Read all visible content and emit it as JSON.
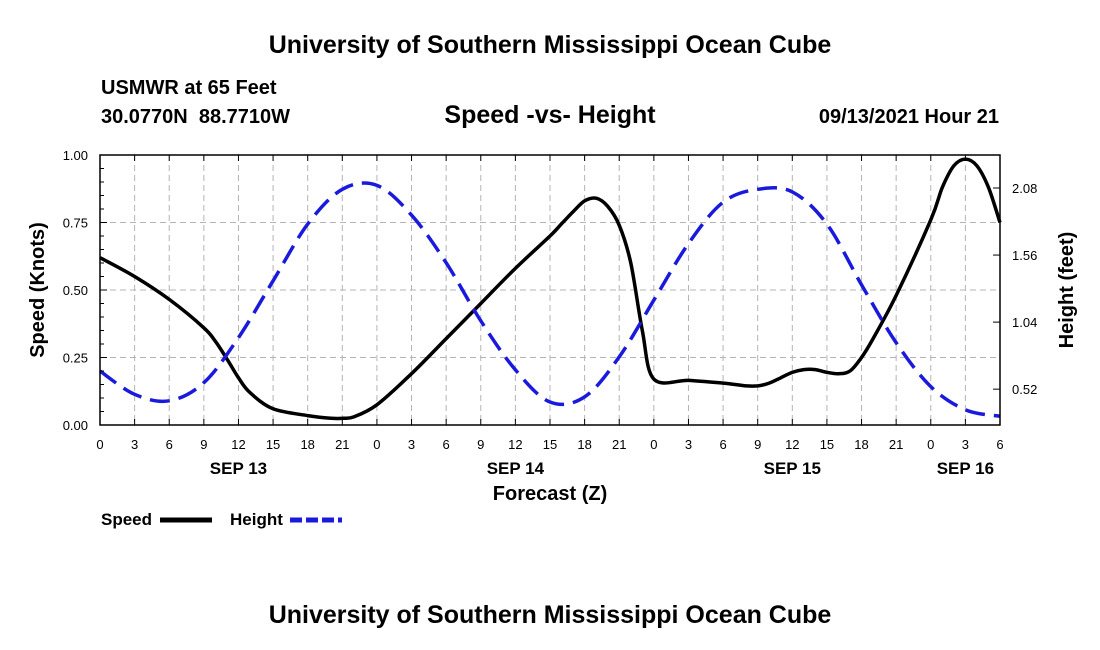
{
  "header": {
    "top_title": "University of Southern Mississippi Ocean Cube",
    "station": "USMWR at 65 Feet",
    "coords": "30.0770N  88.7710W",
    "datetime": "09/13/2021 Hour 21",
    "bottom_title": "University of Southern Mississippi Ocean Cube"
  },
  "colors": {
    "speed": "#000000",
    "height": "#1a1adc",
    "grid": "#b4b4b4"
  },
  "chart_data": {
    "type": "line",
    "title": "Speed -vs- Height",
    "xlabel": "Forecast (Z)",
    "ylabel": "Speed (Knots)",
    "y2label": "Height (feet)",
    "xlim": [
      0,
      78
    ],
    "ylim": [
      0,
      1.0
    ],
    "y2lim": [
      0.242,
      2.336
    ],
    "x_ticks": [
      0,
      3,
      6,
      9,
      12,
      15,
      18,
      21,
      24,
      27,
      30,
      33,
      36,
      39,
      42,
      45,
      48,
      51,
      54,
      57,
      60,
      63,
      66,
      69,
      72,
      75,
      78
    ],
    "x_tick_labels": [
      "0",
      "3",
      "6",
      "9",
      "12",
      "15",
      "18",
      "21",
      "0",
      "3",
      "6",
      "9",
      "12",
      "15",
      "18",
      "21",
      "0",
      "3",
      "6",
      "9",
      "12",
      "15",
      "18",
      "21",
      "0",
      "3",
      "6"
    ],
    "date_labels": [
      {
        "x": 12,
        "label": "SEP 13"
      },
      {
        "x": 36,
        "label": "SEP 14"
      },
      {
        "x": 60,
        "label": "SEP 15"
      },
      {
        "x": 75,
        "label": "SEP 16"
      }
    ],
    "y_ticks": [
      0.0,
      0.25,
      0.5,
      0.75,
      1.0
    ],
    "y_tick_labels": [
      "0.00",
      "0.25",
      "0.50",
      "0.75",
      "1.00"
    ],
    "y2_ticks": [
      0.52,
      1.04,
      1.56,
      2.08
    ],
    "y2_tick_labels": [
      "0.52",
      "1.04",
      "1.56",
      "2.08"
    ],
    "series": [
      {
        "name": "Speed",
        "axis": "left",
        "style": "solid",
        "x": [
          0,
          3,
          6,
          9,
          10,
          11,
          12,
          13,
          15,
          18,
          20,
          21,
          22,
          24,
          27,
          30,
          33,
          36,
          39,
          40,
          41,
          42,
          43,
          44,
          45,
          46,
          47,
          48,
          51,
          54,
          56,
          57,
          58,
          59,
          60,
          61,
          62,
          63,
          64,
          65,
          66,
          67,
          69,
          72,
          73,
          74,
          75,
          76,
          77,
          78
        ],
        "y": [
          0.62,
          0.55,
          0.465,
          0.36,
          0.31,
          0.245,
          0.175,
          0.12,
          0.06,
          0.035,
          0.025,
          0.025,
          0.03,
          0.075,
          0.19,
          0.32,
          0.45,
          0.58,
          0.7,
          0.745,
          0.79,
          0.83,
          0.84,
          0.81,
          0.74,
          0.6,
          0.35,
          0.17,
          0.165,
          0.155,
          0.145,
          0.145,
          0.155,
          0.175,
          0.195,
          0.205,
          0.205,
          0.195,
          0.19,
          0.2,
          0.25,
          0.32,
          0.48,
          0.76,
          0.88,
          0.96,
          0.985,
          0.96,
          0.88,
          0.75
        ]
      },
      {
        "name": "Height",
        "axis": "right",
        "style": "dashed",
        "x": [
          0,
          3,
          6,
          9,
          12,
          15,
          18,
          21,
          24,
          27,
          30,
          33,
          36,
          39,
          42,
          45,
          48,
          51,
          54,
          57,
          60,
          63,
          66,
          69,
          72,
          75,
          78
        ],
        "y": [
          0.66,
          0.48,
          0.43,
          0.57,
          0.92,
          1.36,
          1.8,
          2.07,
          2.1,
          1.87,
          1.5,
          1.05,
          0.67,
          0.42,
          0.46,
          0.77,
          1.21,
          1.65,
          1.97,
          2.07,
          2.05,
          1.8,
          1.33,
          0.88,
          0.54,
          0.36,
          0.31
        ]
      }
    ],
    "legend": [
      {
        "label": "Speed",
        "series": "Speed"
      },
      {
        "label": "Height",
        "series": "Height"
      }
    ]
  }
}
